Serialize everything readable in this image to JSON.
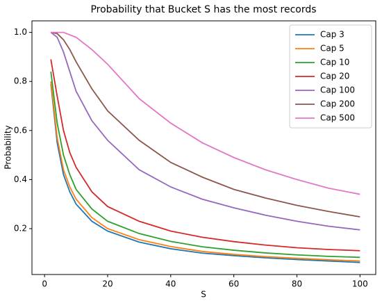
{
  "chart_data": {
    "type": "line",
    "title": "Probability that Bucket S has the most records",
    "x_label": "S",
    "y_label": "Probability",
    "x": [
      2,
      4,
      6,
      8,
      10,
      15,
      20,
      30,
      40,
      50,
      60,
      70,
      80,
      90,
      100
    ],
    "series": [
      {
        "name": "Cap 3",
        "color": "#1f77b4",
        "values": [
          0.79,
          0.55,
          0.42,
          0.35,
          0.3,
          0.23,
          0.19,
          0.145,
          0.118,
          0.1,
          0.09,
          0.081,
          0.074,
          0.068,
          0.062
        ]
      },
      {
        "name": "Cap 5",
        "color": "#ff7f0e",
        "values": [
          0.8,
          0.57,
          0.44,
          0.37,
          0.32,
          0.245,
          0.2,
          0.155,
          0.127,
          0.107,
          0.095,
          0.086,
          0.079,
          0.073,
          0.068
        ]
      },
      {
        "name": "Cap 10",
        "color": "#2ca02c",
        "values": [
          0.84,
          0.63,
          0.5,
          0.42,
          0.36,
          0.28,
          0.23,
          0.18,
          0.148,
          0.126,
          0.112,
          0.101,
          0.093,
          0.087,
          0.083
        ]
      },
      {
        "name": "Cap 20",
        "color": "#d62728",
        "values": [
          0.89,
          0.74,
          0.6,
          0.51,
          0.45,
          0.35,
          0.29,
          0.23,
          0.19,
          0.165,
          0.147,
          0.133,
          0.122,
          0.115,
          0.11
        ]
      },
      {
        "name": "Cap 100",
        "color": "#9467bd",
        "values": [
          1.0,
          0.98,
          0.92,
          0.84,
          0.76,
          0.64,
          0.56,
          0.44,
          0.37,
          0.32,
          0.285,
          0.255,
          0.23,
          0.21,
          0.195
        ]
      },
      {
        "name": "Cap 200",
        "color": "#8c564b",
        "values": [
          1.0,
          0.995,
          0.97,
          0.93,
          0.88,
          0.77,
          0.68,
          0.56,
          0.47,
          0.41,
          0.36,
          0.325,
          0.295,
          0.27,
          0.248
        ]
      },
      {
        "name": "Cap 500",
        "color": "#e377c2",
        "values": [
          1.0,
          1.0,
          1.0,
          0.99,
          0.98,
          0.93,
          0.87,
          0.73,
          0.63,
          0.55,
          0.49,
          0.44,
          0.4,
          0.365,
          0.34
        ]
      }
    ],
    "xlim": [
      -4,
      105
    ],
    "ylim": [
      0.013,
      1.047
    ],
    "xticks": [
      0,
      20,
      40,
      60,
      80,
      100
    ],
    "yticks": [
      0.2,
      0.4,
      0.6,
      0.8,
      {
        "value": 1.0,
        "label": "1.0"
      }
    ],
    "legend": "upper right"
  }
}
